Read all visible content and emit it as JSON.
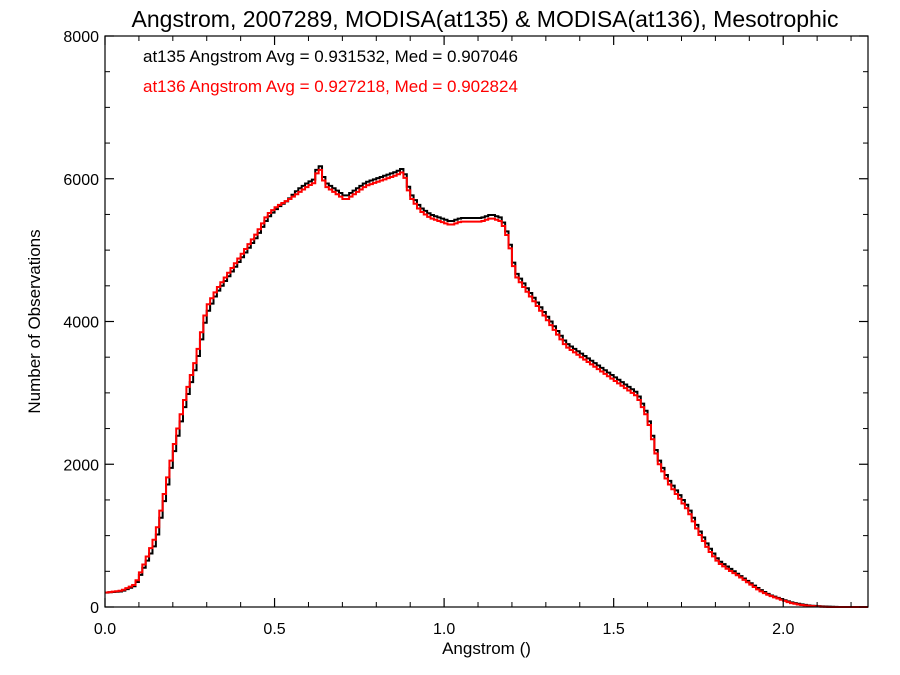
{
  "chart_data": {
    "type": "line",
    "title": "Angstrom, 2007289, MODISA(at135) & MODISA(at136), Mesotrophic",
    "xlabel": "Angstrom ()",
    "ylabel": "Number of Observations",
    "xlim": [
      0.0,
      2.25
    ],
    "ylim": [
      0,
      8000
    ],
    "x_ticks": [
      0.0,
      0.5,
      1.0,
      1.5,
      2.0
    ],
    "x_tick_labels": [
      "0.0",
      "0.5",
      "1.0",
      "1.5",
      "2.0"
    ],
    "y_ticks": [
      0,
      2000,
      4000,
      6000,
      8000
    ],
    "y_tick_labels": [
      "0",
      "2000",
      "4000",
      "6000",
      "8000"
    ],
    "grid": false,
    "legend_position": "top-left",
    "bin_width": 0.01,
    "series": [
      {
        "name": "at135 Angstrom Avg = 0.931532, Med = 0.907046",
        "color": "#000000",
        "x": [
          0.0,
          0.05,
          0.09,
          0.12,
          0.15,
          0.18,
          0.21,
          0.24,
          0.27,
          0.3,
          0.33,
          0.36,
          0.39,
          0.42,
          0.45,
          0.48,
          0.51,
          0.54,
          0.57,
          0.6,
          0.62,
          0.63,
          0.65,
          0.68,
          0.71,
          0.74,
          0.77,
          0.8,
          0.83,
          0.86,
          0.88,
          0.9,
          0.93,
          0.96,
          0.99,
          1.02,
          1.05,
          1.08,
          1.11,
          1.14,
          1.17,
          1.19,
          1.21,
          1.24,
          1.27,
          1.3,
          1.33,
          1.36,
          1.39,
          1.42,
          1.45,
          1.48,
          1.51,
          1.54,
          1.57,
          1.6,
          1.63,
          1.66,
          1.69,
          1.72,
          1.75,
          1.78,
          1.81,
          1.84,
          1.87,
          1.9,
          1.93,
          1.96,
          1.99,
          2.02,
          2.05,
          2.08,
          2.11,
          2.14,
          2.17,
          2.2,
          2.25
        ],
        "y": [
          200,
          220,
          300,
          600,
          900,
          1600,
          2300,
          2900,
          3400,
          4100,
          4400,
          4600,
          4800,
          5000,
          5200,
          5450,
          5600,
          5700,
          5850,
          5950,
          6000,
          6250,
          5950,
          5850,
          5750,
          5850,
          5950,
          6000,
          6050,
          6100,
          6150,
          5800,
          5600,
          5500,
          5450,
          5400,
          5450,
          5450,
          5450,
          5500,
          5450,
          5200,
          4700,
          4500,
          4300,
          4100,
          3900,
          3700,
          3600,
          3500,
          3400,
          3300,
          3200,
          3100,
          3000,
          2700,
          2100,
          1800,
          1600,
          1400,
          1100,
          850,
          650,
          550,
          450,
          350,
          250,
          170,
          120,
          70,
          40,
          20,
          10,
          5,
          0,
          0,
          0
        ]
      },
      {
        "name": "at136 Angstrom Avg = 0.927218, Med = 0.902824",
        "color": "#ff0000",
        "x": [
          0.0,
          0.05,
          0.09,
          0.12,
          0.15,
          0.18,
          0.21,
          0.24,
          0.27,
          0.3,
          0.33,
          0.36,
          0.39,
          0.42,
          0.45,
          0.48,
          0.51,
          0.54,
          0.57,
          0.6,
          0.62,
          0.63,
          0.65,
          0.68,
          0.71,
          0.74,
          0.77,
          0.8,
          0.83,
          0.86,
          0.88,
          0.9,
          0.93,
          0.96,
          0.99,
          1.02,
          1.05,
          1.08,
          1.11,
          1.14,
          1.17,
          1.19,
          1.21,
          1.24,
          1.27,
          1.3,
          1.33,
          1.36,
          1.39,
          1.42,
          1.45,
          1.48,
          1.51,
          1.54,
          1.57,
          1.6,
          1.63,
          1.66,
          1.69,
          1.72,
          1.75,
          1.78,
          1.81,
          1.84,
          1.87,
          1.9,
          1.93,
          1.96,
          1.99,
          2.02,
          2.05,
          2.08,
          2.11,
          2.14,
          2.17,
          2.2,
          2.25
        ],
        "y": [
          200,
          230,
          320,
          650,
          1000,
          1700,
          2400,
          3000,
          3500,
          4200,
          4450,
          4650,
          4850,
          5050,
          5250,
          5500,
          5620,
          5700,
          5800,
          5900,
          5950,
          6200,
          5900,
          5800,
          5700,
          5800,
          5900,
          5950,
          6000,
          6050,
          6100,
          5750,
          5550,
          5450,
          5400,
          5350,
          5400,
          5400,
          5400,
          5450,
          5400,
          5150,
          4650,
          4450,
          4250,
          4050,
          3850,
          3650,
          3550,
          3450,
          3350,
          3250,
          3150,
          3050,
          2950,
          2650,
          2050,
          1750,
          1550,
          1350,
          1050,
          800,
          620,
          520,
          430,
          330,
          230,
          160,
          110,
          60,
          30,
          15,
          5,
          0,
          0,
          0,
          0
        ]
      }
    ]
  }
}
